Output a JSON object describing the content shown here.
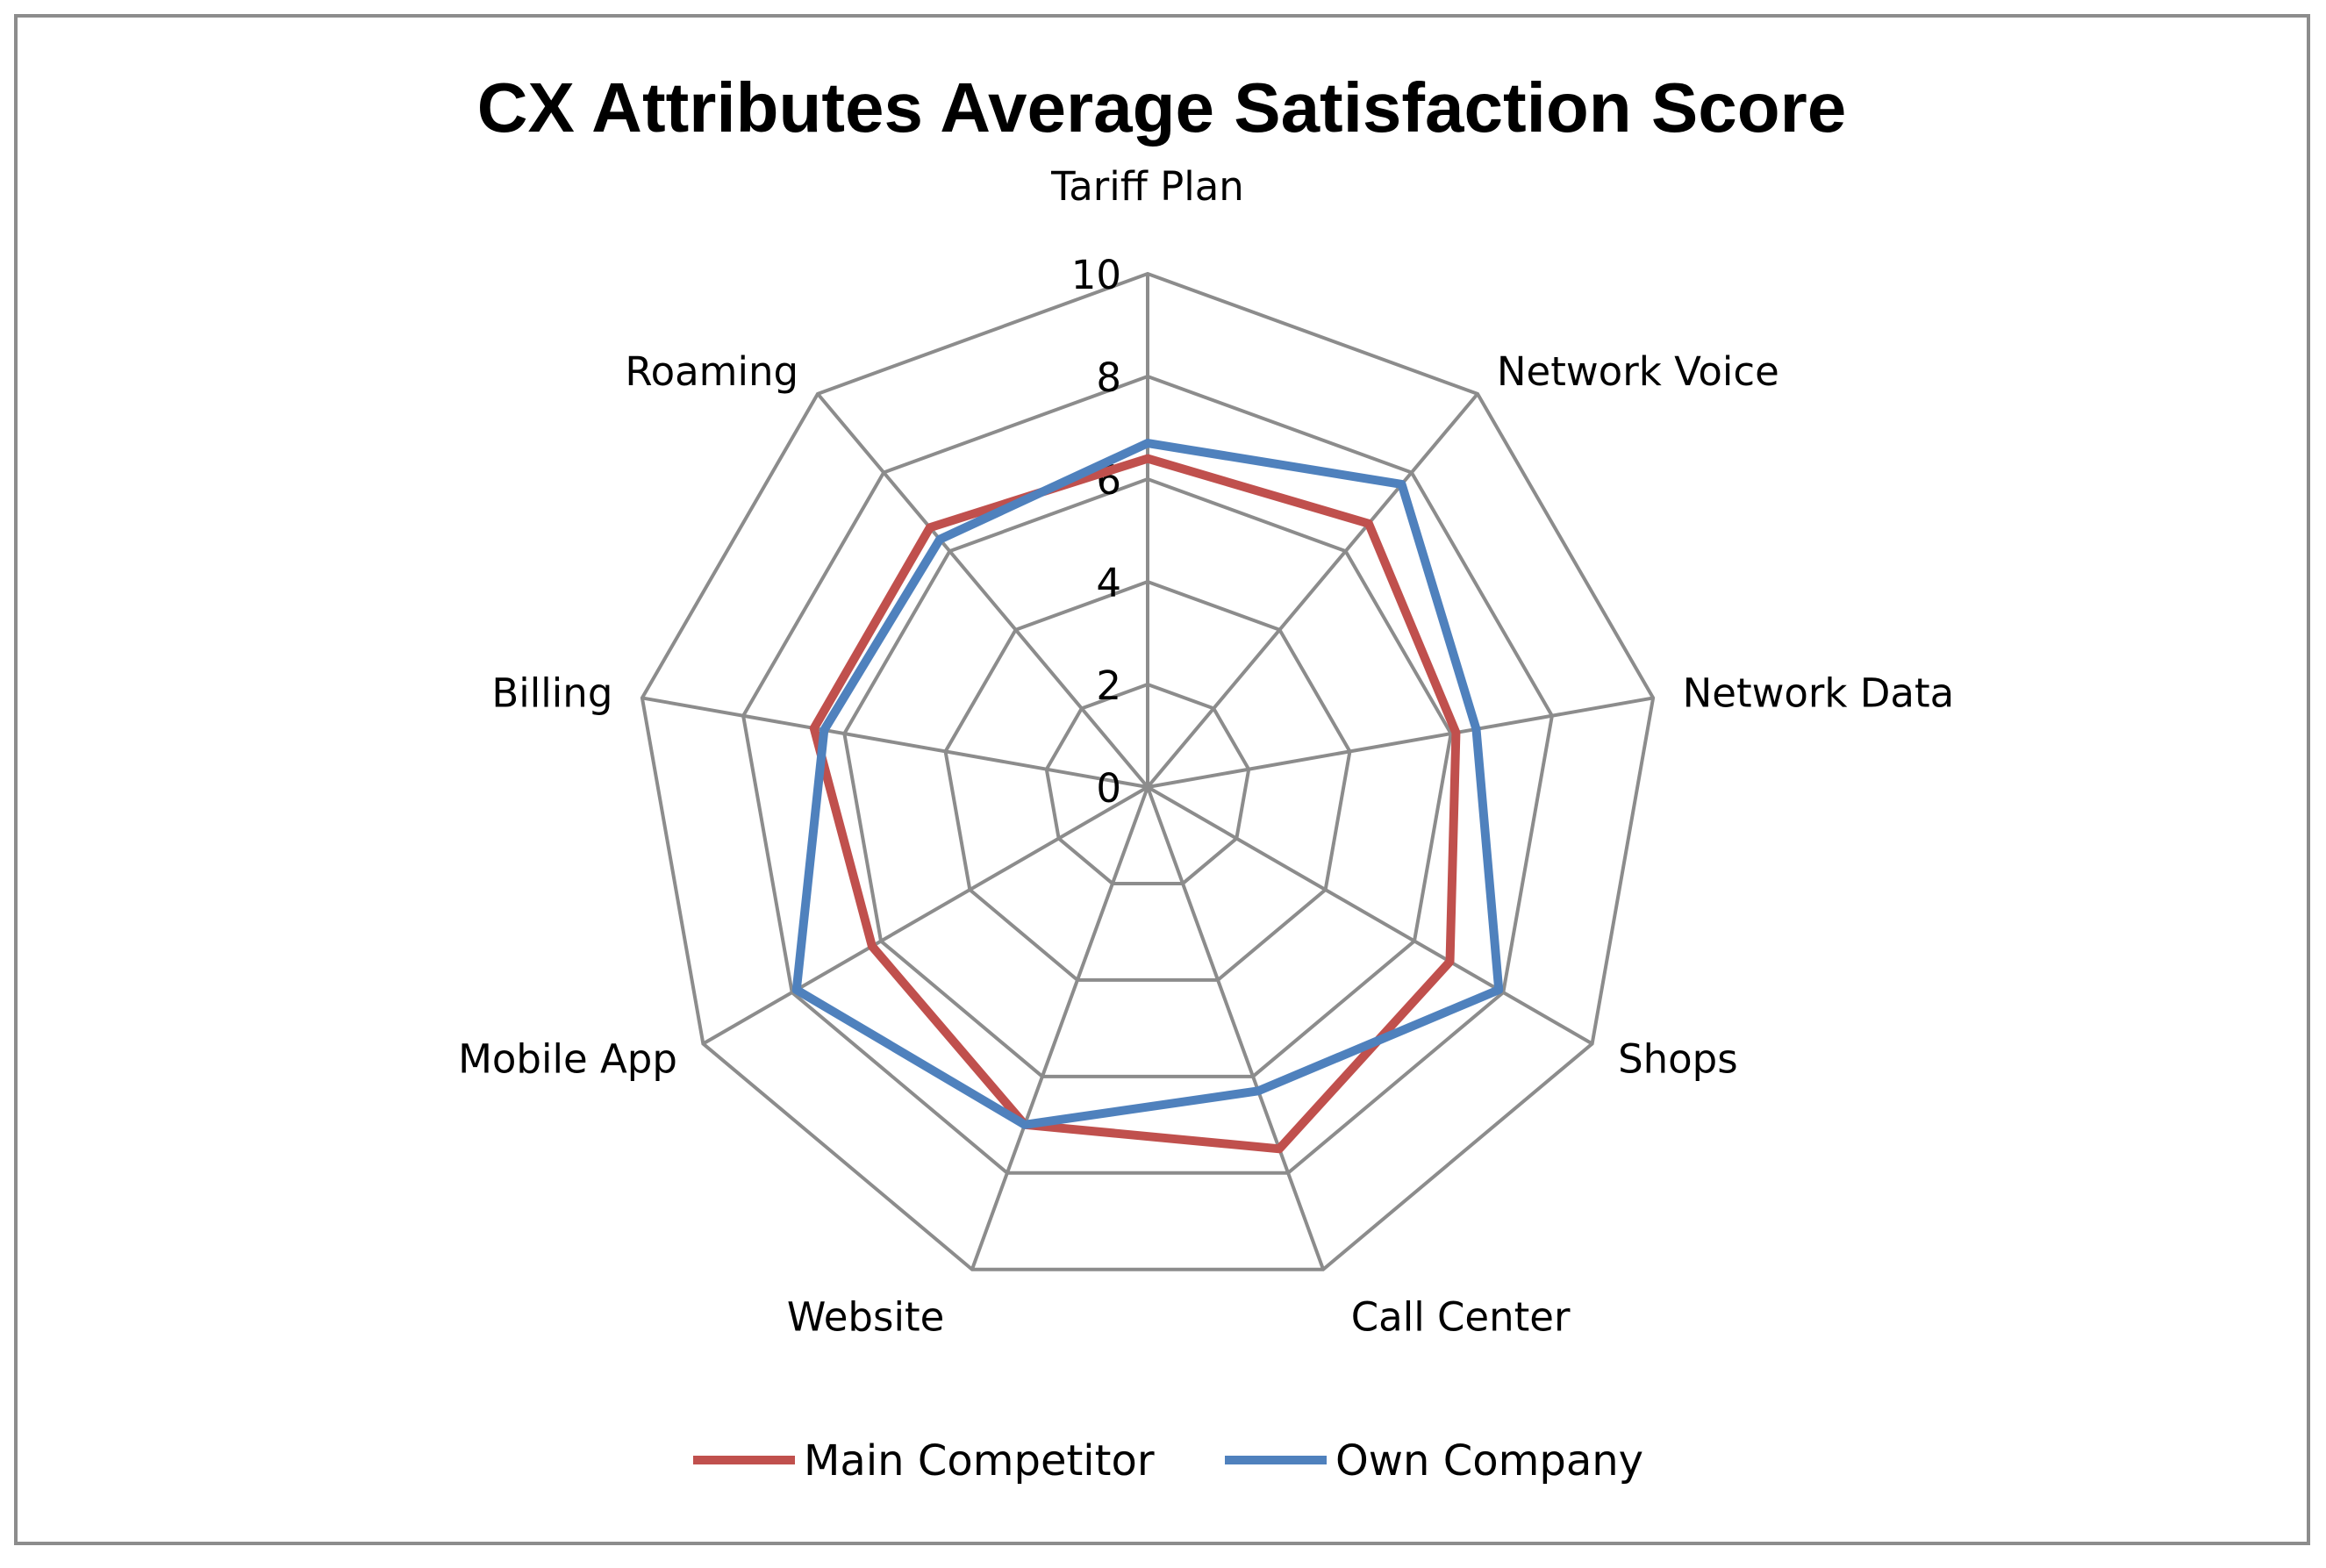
{
  "chart_data": {
    "type": "radar",
    "title": "CX Attributes Average Satisfaction Score",
    "categories": [
      "Tariff Plan",
      "Network Voice",
      "Network Data",
      "Shops",
      "Call Center",
      "Website",
      "Mobile App",
      "Billing",
      "Roaming"
    ],
    "rmin": 0,
    "rmax": 10,
    "ticks": [
      0,
      2,
      4,
      6,
      8,
      10
    ],
    "grid": true,
    "legend_position": "bottom",
    "series": [
      {
        "name": "Main Competitor",
        "color": "#c0504d",
        "values": [
          6.4,
          6.7,
          6.1,
          6.8,
          7.5,
          7.0,
          6.2,
          6.6,
          6.6
        ]
      },
      {
        "name": "Own Company",
        "color": "#4f81bd",
        "values": [
          6.7,
          7.7,
          6.5,
          7.9,
          6.3,
          7.0,
          7.9,
          6.4,
          6.3
        ]
      }
    ]
  }
}
